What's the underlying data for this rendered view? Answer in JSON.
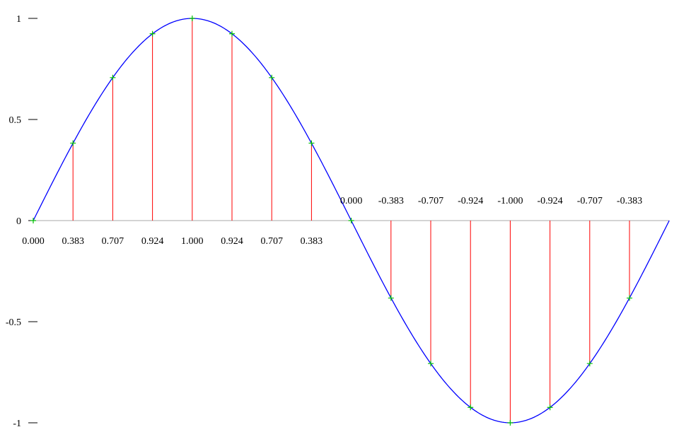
{
  "chart_data": {
    "type": "line",
    "title": "",
    "xlabel": "",
    "ylabel": "",
    "ylim": [
      -1,
      1
    ],
    "yticks": [
      "1",
      "0.5",
      "0",
      "-0.5",
      "-1"
    ],
    "x": [
      0,
      1,
      2,
      3,
      4,
      5,
      6,
      7,
      8,
      9,
      10,
      11,
      12,
      13,
      14,
      15
    ],
    "values": [
      0.0,
      0.383,
      0.707,
      0.924,
      1.0,
      0.924,
      0.707,
      0.383,
      0.0,
      -0.383,
      -0.707,
      -0.924,
      -1.0,
      -0.924,
      -0.707,
      -0.383
    ],
    "value_labels": [
      "0.000",
      "0.383",
      "0.707",
      "0.924",
      "1.000",
      "0.924",
      "0.707",
      "0.383",
      "0.000",
      "-0.383",
      "-0.707",
      "-0.924",
      "-1.000",
      "-0.924",
      "-0.707",
      "-0.383"
    ],
    "curve_x_end": 16,
    "grid": false,
    "colors": {
      "curve": "#0000ff",
      "stems": "#ff0000",
      "markers": "#00c000",
      "axis": "#aaaaaa",
      "text": "#000000"
    }
  }
}
